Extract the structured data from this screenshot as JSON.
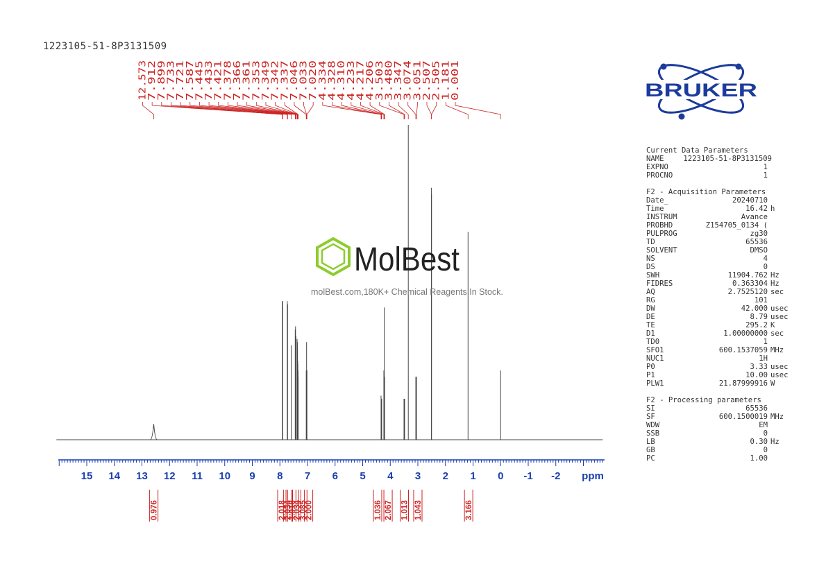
{
  "header": {
    "sample_name": "1223105-51-8P3131509"
  },
  "logos": {
    "bruker": "BRUKER",
    "watermark_brand": "MolBest",
    "watermark_text": "molBest.com,180K+ Chemical Reagents In Stock."
  },
  "colors": {
    "peak_labels": "#cc2222",
    "axis": "#1a3fb0",
    "integrals": "#cc2222",
    "spectrum": "#444444",
    "bruker_blue": "#1c3b9c",
    "molbest_green": "#8ccc2c"
  },
  "chart_data": {
    "type": "line",
    "xlabel": "ppm",
    "x_reversed": true,
    "xlim": [
      16.1,
      -3.7
    ],
    "ticks": [
      "15",
      "14",
      "13",
      "12",
      "11",
      "10",
      "9",
      "8",
      "7",
      "6",
      "5",
      "4",
      "3",
      "2",
      "1",
      "0",
      "-1",
      "-2"
    ],
    "tick_values": [
      15,
      14,
      13,
      12,
      11,
      10,
      9,
      8,
      7,
      6,
      5,
      4,
      3,
      2,
      1,
      0,
      -1,
      -2
    ],
    "peak_labels": [
      "12.573",
      "7.912",
      "7.899",
      "7.733",
      "7.721",
      "7.587",
      "7.445",
      "7.433",
      "7.421",
      "7.378",
      "7.366",
      "7.361",
      "7.353",
      "7.349",
      "7.342",
      "7.337",
      "7.046",
      "7.033",
      "7.020",
      "4.334",
      "4.328",
      "4.310",
      "4.233",
      "4.217",
      "4.206",
      "3.503",
      "3.480",
      "3.347",
      "3.074",
      "3.051",
      "2.507",
      "2.505",
      "1.181",
      "0.001"
    ],
    "peaks": [
      {
        "ppm": 12.573,
        "h": 0.05
      },
      {
        "ppm": 7.912,
        "h": 0.44
      },
      {
        "ppm": 7.899,
        "h": 0.44
      },
      {
        "ppm": 7.733,
        "h": 0.44
      },
      {
        "ppm": 7.721,
        "h": 0.43
      },
      {
        "ppm": 7.587,
        "h": 0.3
      },
      {
        "ppm": 7.445,
        "h": 0.35
      },
      {
        "ppm": 7.433,
        "h": 0.36
      },
      {
        "ppm": 7.421,
        "h": 0.33
      },
      {
        "ppm": 7.378,
        "h": 0.32
      },
      {
        "ppm": 7.366,
        "h": 0.31
      },
      {
        "ppm": 7.361,
        "h": 0.29
      },
      {
        "ppm": 7.353,
        "h": 0.25
      },
      {
        "ppm": 7.349,
        "h": 0.24
      },
      {
        "ppm": 7.342,
        "h": 0.22
      },
      {
        "ppm": 7.337,
        "h": 0.2
      },
      {
        "ppm": 7.046,
        "h": 0.22
      },
      {
        "ppm": 7.033,
        "h": 0.31
      },
      {
        "ppm": 7.02,
        "h": 0.22
      },
      {
        "ppm": 4.334,
        "h": 0.14
      },
      {
        "ppm": 4.328,
        "h": 0.12
      },
      {
        "ppm": 4.31,
        "h": 0.13
      },
      {
        "ppm": 4.233,
        "h": 0.22
      },
      {
        "ppm": 4.217,
        "h": 0.42
      },
      {
        "ppm": 4.206,
        "h": 0.2
      },
      {
        "ppm": 3.503,
        "h": 0.13
      },
      {
        "ppm": 3.48,
        "h": 0.13
      },
      {
        "ppm": 3.347,
        "h": 1.0
      },
      {
        "ppm": 3.074,
        "h": 0.2
      },
      {
        "ppm": 3.051,
        "h": 0.2
      },
      {
        "ppm": 2.507,
        "h": 0.8
      },
      {
        "ppm": 2.505,
        "h": 0.78
      },
      {
        "ppm": 1.181,
        "h": 0.66
      },
      {
        "ppm": 0.001,
        "h": 0.22
      }
    ],
    "integrals": [
      {
        "ppm": 12.57,
        "value": "0.976"
      },
      {
        "ppm": 7.93,
        "value": "2.018"
      },
      {
        "ppm": 7.72,
        "value": "2.034"
      },
      {
        "ppm": 7.57,
        "value": "1.018"
      },
      {
        "ppm": 7.39,
        "value": "2.034"
      },
      {
        "ppm": 7.17,
        "value": "3.085"
      },
      {
        "ppm": 6.96,
        "value": "2.000"
      },
      {
        "ppm": 4.46,
        "value": "1.036"
      },
      {
        "ppm": 4.08,
        "value": "2.067"
      },
      {
        "ppm": 3.49,
        "value": "1.013"
      },
      {
        "ppm": 3.0,
        "value": "1.043"
      },
      {
        "ppm": 1.16,
        "value": "3.166"
      }
    ]
  },
  "parameters": {
    "current": {
      "heading": "Current Data Parameters",
      "rows": [
        [
          "NAME",
          "1223105-51-8P3131509",
          ""
        ],
        [
          "EXPNO",
          "1",
          ""
        ],
        [
          "PROCNO",
          "1",
          ""
        ]
      ]
    },
    "acquisition": {
      "heading": "F2 - Acquisition Parameters",
      "rows": [
        [
          "Date_",
          "20240710",
          ""
        ],
        [
          "Time",
          "16.42",
          "h"
        ],
        [
          "INSTRUM",
          "Avance",
          ""
        ],
        [
          "PROBHD",
          "Z154705_0134 (",
          ""
        ],
        [
          "PULPROG",
          "zg30",
          ""
        ],
        [
          "TD",
          "65536",
          ""
        ],
        [
          "SOLVENT",
          "DMSO",
          ""
        ],
        [
          "NS",
          "4",
          ""
        ],
        [
          "DS",
          "0",
          ""
        ],
        [
          "SWH",
          "11904.762",
          "Hz"
        ],
        [
          "FIDRES",
          "0.363304",
          "Hz"
        ],
        [
          "AQ",
          "2.7525120",
          "sec"
        ],
        [
          "RG",
          "101",
          ""
        ],
        [
          "DW",
          "42.000",
          "usec"
        ],
        [
          "DE",
          "8.79",
          "usec"
        ],
        [
          "TE",
          "295.2",
          "K"
        ],
        [
          "D1",
          "1.00000000",
          "sec"
        ],
        [
          "TD0",
          "1",
          ""
        ],
        [
          "SFO1",
          "600.1537059",
          "MHz"
        ],
        [
          "NUC1",
          "1H",
          ""
        ],
        [
          "P0",
          "3.33",
          "usec"
        ],
        [
          "P1",
          "10.00",
          "usec"
        ],
        [
          "PLW1",
          "21.87999916",
          "W"
        ]
      ]
    },
    "processing": {
      "heading": "F2 - Processing parameters",
      "rows": [
        [
          "SI",
          "65536",
          ""
        ],
        [
          "SF",
          "600.1500019",
          "MHz"
        ],
        [
          "WDW",
          "EM",
          ""
        ],
        [
          "SSB",
          "0",
          ""
        ],
        [
          "LB",
          "0.30",
          "Hz"
        ],
        [
          "GB",
          "0",
          ""
        ],
        [
          "PC",
          "1.00",
          ""
        ]
      ]
    }
  }
}
